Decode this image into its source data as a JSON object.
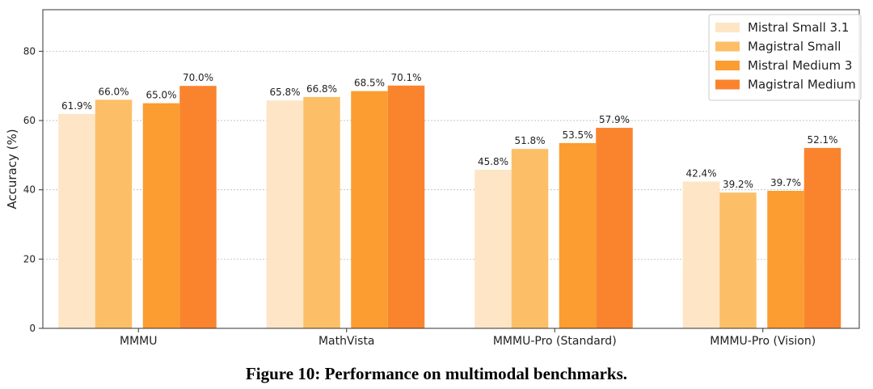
{
  "chart_data": {
    "type": "bar",
    "categories": [
      "MMMU",
      "MathVista",
      "MMMU-Pro (Standard)",
      "MMMU-Pro (Vision)"
    ],
    "series": [
      {
        "name": "Mistral Small 3.1",
        "color": "#fde5c6",
        "values": [
          61.9,
          65.8,
          45.8,
          42.4
        ],
        "labels": [
          "61.9%",
          "65.8%",
          "45.8%",
          "42.4%"
        ]
      },
      {
        "name": "Magistral Small",
        "color": "#fcbf68",
        "values": [
          66.0,
          66.8,
          51.8,
          39.2
        ],
        "labels": [
          "66.0%",
          "66.8%",
          "51.8%",
          "39.2%"
        ]
      },
      {
        "name": "Mistral Medium 3",
        "color": "#fb9d30",
        "values": [
          65.0,
          68.5,
          53.5,
          39.7
        ],
        "labels": [
          "65.0%",
          "68.5%",
          "53.5%",
          "39.7%"
        ]
      },
      {
        "name": "Magistral Medium",
        "color": "#fa842e",
        "values": [
          70.0,
          70.1,
          57.9,
          52.1
        ],
        "labels": [
          "70.0%",
          "70.1%",
          "57.9%",
          "52.1%"
        ]
      }
    ],
    "ylabel": "Accuracy (%)",
    "ylim": [
      0,
      92
    ],
    "yticks": [
      0,
      20,
      40,
      60,
      80
    ],
    "grid": true,
    "legend_position": "top-right"
  },
  "caption": "Figure 10: Performance on multimodal benchmarks."
}
